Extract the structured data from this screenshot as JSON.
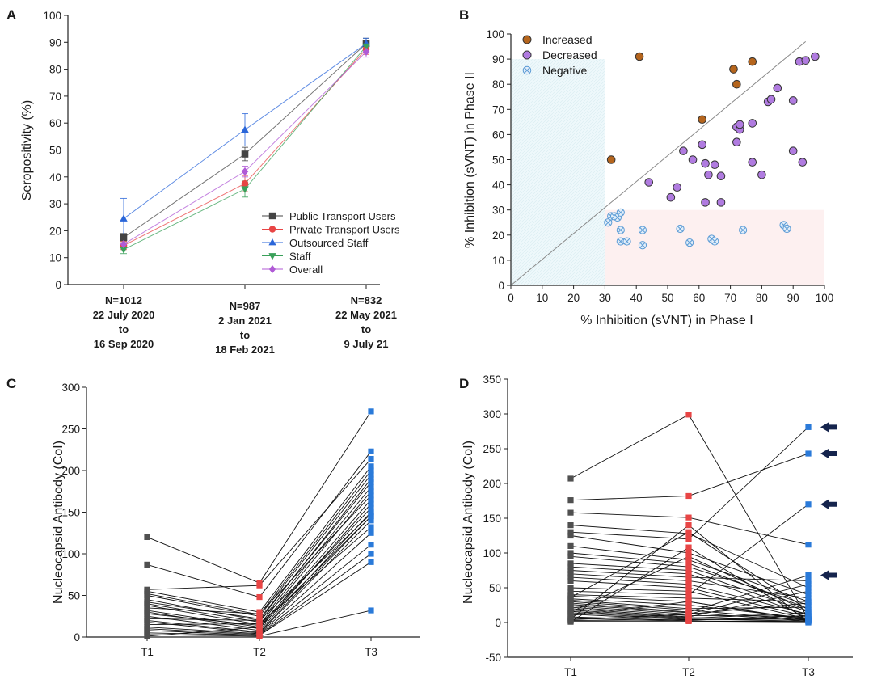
{
  "panels": {
    "a": "A",
    "b": "B",
    "c": "C",
    "d": "D"
  },
  "colors": {
    "public": "#444444",
    "private": "#e84545",
    "outsourced": "#2a66d9",
    "staff": "#3aa05a",
    "overall": "#b05ad6",
    "increased": "#b5651d",
    "decreased": "#b07be0",
    "negative": "#5b9bd5",
    "T1": "#505050",
    "T2": "#e84545",
    "T3": "#2a7ad9",
    "arrow": "#15244d"
  },
  "chart_data": [
    {
      "id": "A",
      "type": "line",
      "ylabel": "Seropositivity (%)",
      "ylim": [
        0,
        100
      ],
      "yticks": [
        0,
        10,
        20,
        30,
        40,
        50,
        60,
        70,
        80,
        90,
        100
      ],
      "categories": [
        [
          "N=1012",
          "22 July 2020",
          "to",
          "16 Sep 2020"
        ],
        [
          "N=987",
          "2 Jan 2021",
          "to",
          "18 Feb 2021"
        ],
        [
          "N=832",
          "22 May 2021",
          "to",
          "9 July 21"
        ]
      ],
      "legend_position": "lower-right",
      "series": [
        {
          "name": "Public Transport Users",
          "marker": "square",
          "color_key": "public",
          "values": [
            17.5,
            48.5,
            89.5
          ],
          "err": [
            1.5,
            2.5,
            2
          ]
        },
        {
          "name": "Private Transport Users",
          "marker": "circle",
          "color_key": "private",
          "values": [
            14.5,
            37.5,
            87.5
          ],
          "err": [
            1.5,
            3,
            2
          ]
        },
        {
          "name": "Outsourced Staff",
          "marker": "triangle-up",
          "color_key": "outsourced",
          "values": [
            24.5,
            57.5,
            89.5
          ],
          "err": [
            7.5,
            6,
            2
          ]
        },
        {
          "name": "Staff",
          "marker": "triangle-down",
          "color_key": "staff",
          "values": [
            13.0,
            35.5,
            88.5
          ],
          "err": [
            1.5,
            3,
            2
          ]
        },
        {
          "name": "Overall",
          "marker": "diamond",
          "color_key": "overall",
          "values": [
            15.0,
            42.0,
            86.5
          ],
          "err": [
            1.5,
            2,
            2
          ]
        }
      ]
    },
    {
      "id": "B",
      "type": "scatter",
      "xlabel": "% Inhibition (sVNT) in Phase I",
      "ylabel": "% Inhibition (sVNT) in Phase II",
      "xlim": [
        0,
        100
      ],
      "ylim": [
        0,
        100
      ],
      "ticks": [
        0,
        10,
        20,
        30,
        40,
        50,
        60,
        70,
        80,
        90,
        100
      ],
      "legend_position": "top-left",
      "series": [
        {
          "name": "Increased",
          "marker": "circle",
          "color_key": "increased",
          "points": [
            [
              32,
              50
            ],
            [
              41,
              91
            ],
            [
              61,
              66
            ],
            [
              71,
              86
            ],
            [
              72,
              80
            ],
            [
              77,
              89
            ]
          ]
        },
        {
          "name": "Decreased",
          "marker": "circle",
          "color_key": "decreased",
          "points": [
            [
              44,
              41
            ],
            [
              51,
              35
            ],
            [
              53,
              39
            ],
            [
              55,
              53.5
            ],
            [
              58,
              50
            ],
            [
              61,
              56
            ],
            [
              62,
              48.5
            ],
            [
              62,
              33
            ],
            [
              63,
              44
            ],
            [
              65,
              48
            ],
            [
              67,
              43.5
            ],
            [
              67,
              33
            ],
            [
              72,
              57
            ],
            [
              72,
              63
            ],
            [
              73,
              62
            ],
            [
              73,
              64
            ],
            [
              77,
              64.5
            ],
            [
              77,
              49
            ],
            [
              80,
              44
            ],
            [
              82,
              73
            ],
            [
              83,
              74
            ],
            [
              85,
              78.5
            ],
            [
              90,
              53.5
            ],
            [
              90,
              73.5
            ],
            [
              92,
              89
            ],
            [
              93,
              49
            ],
            [
              94,
              89.5
            ],
            [
              97,
              91
            ]
          ]
        },
        {
          "name": "Negative",
          "marker": "circled-x",
          "color_key": "negative",
          "points": [
            [
              31,
              25
            ],
            [
              32,
              27.5
            ],
            [
              33,
              27.5
            ],
            [
              34,
              27
            ],
            [
              35,
              29
            ],
            [
              35,
              22
            ],
            [
              35,
              17.5
            ],
            [
              37,
              17.5
            ],
            [
              42,
              22
            ],
            [
              42,
              16
            ],
            [
              54,
              22.5
            ],
            [
              57,
              17
            ],
            [
              64,
              18.5
            ],
            [
              65,
              17.5
            ],
            [
              74,
              22
            ],
            [
              87,
              24
            ],
            [
              88,
              22.5
            ]
          ]
        }
      ],
      "reference_line": "y = x",
      "shaded_regions": [
        "x < 30",
        "x >= 30 and y < 30"
      ]
    },
    {
      "id": "C",
      "type": "line",
      "ylabel": "Nucleocapsid Antibody (CoI)",
      "ylim": [
        0,
        300
      ],
      "yticks": [
        0,
        50,
        100,
        150,
        200,
        250,
        300
      ],
      "categories": [
        "T1",
        "T2",
        "T3"
      ],
      "lines": [
        [
          120,
          65,
          271
        ],
        [
          87,
          48,
          223
        ],
        [
          57,
          62,
          214
        ],
        [
          55,
          30,
          205
        ],
        [
          52,
          27,
          200
        ],
        [
          50,
          25,
          195
        ],
        [
          45,
          20,
          190
        ],
        [
          42,
          22,
          186
        ],
        [
          40,
          18,
          180
        ],
        [
          38,
          15,
          175
        ],
        [
          35,
          28,
          170
        ],
        [
          32,
          12,
          165
        ],
        [
          30,
          10,
          160
        ],
        [
          28,
          14,
          155
        ],
        [
          25,
          8,
          150
        ],
        [
          22,
          20,
          148
        ],
        [
          20,
          6,
          145
        ],
        [
          18,
          5,
          140
        ],
        [
          15,
          16,
          132
        ],
        [
          12,
          4,
          125
        ],
        [
          10,
          3,
          111
        ],
        [
          8,
          2,
          100
        ],
        [
          5,
          2,
          90
        ],
        [
          3,
          1,
          32
        ],
        [
          1,
          12,
          145
        ]
      ]
    },
    {
      "id": "D",
      "type": "line",
      "ylabel": "Nucleocapsid Antibody (CoI)",
      "ylim": [
        -50,
        350
      ],
      "yticks": [
        -50,
        0,
        50,
        100,
        150,
        200,
        250,
        300,
        350
      ],
      "categories": [
        "T1",
        "T2",
        "T3"
      ],
      "arrow_values": [
        281,
        243,
        170,
        68
      ],
      "lines": [
        [
          207,
          299,
          5
        ],
        [
          176,
          182,
          243
        ],
        [
          158,
          151,
          112
        ],
        [
          140,
          128,
          50
        ],
        [
          130,
          120,
          281
        ],
        [
          125,
          100,
          40
        ],
        [
          110,
          90,
          30
        ],
        [
          100,
          85,
          20
        ],
        [
          95,
          80,
          25
        ],
        [
          85,
          75,
          15
        ],
        [
          80,
          70,
          10
        ],
        [
          75,
          65,
          60
        ],
        [
          70,
          60,
          35
        ],
        [
          65,
          55,
          12
        ],
        [
          60,
          50,
          8
        ],
        [
          50,
          45,
          5
        ],
        [
          45,
          40,
          170
        ],
        [
          40,
          35,
          30
        ],
        [
          38,
          30,
          4
        ],
        [
          36,
          130,
          18
        ],
        [
          34,
          25,
          6
        ],
        [
          32,
          20,
          22
        ],
        [
          30,
          18,
          3
        ],
        [
          28,
          15,
          68
        ],
        [
          26,
          14,
          2
        ],
        [
          24,
          12,
          28
        ],
        [
          22,
          10,
          9
        ],
        [
          20,
          8,
          45
        ],
        [
          18,
          7,
          4
        ],
        [
          16,
          6,
          14
        ],
        [
          14,
          5,
          2
        ],
        [
          12,
          4,
          7
        ],
        [
          10,
          30,
          3
        ],
        [
          8,
          3,
          10
        ],
        [
          6,
          2,
          1
        ],
        [
          4,
          12,
          55
        ],
        [
          3,
          4,
          5
        ],
        [
          2,
          2,
          2
        ],
        [
          1,
          108,
          3
        ],
        [
          5,
          140,
          0
        ],
        [
          15,
          95,
          16
        ]
      ]
    }
  ]
}
